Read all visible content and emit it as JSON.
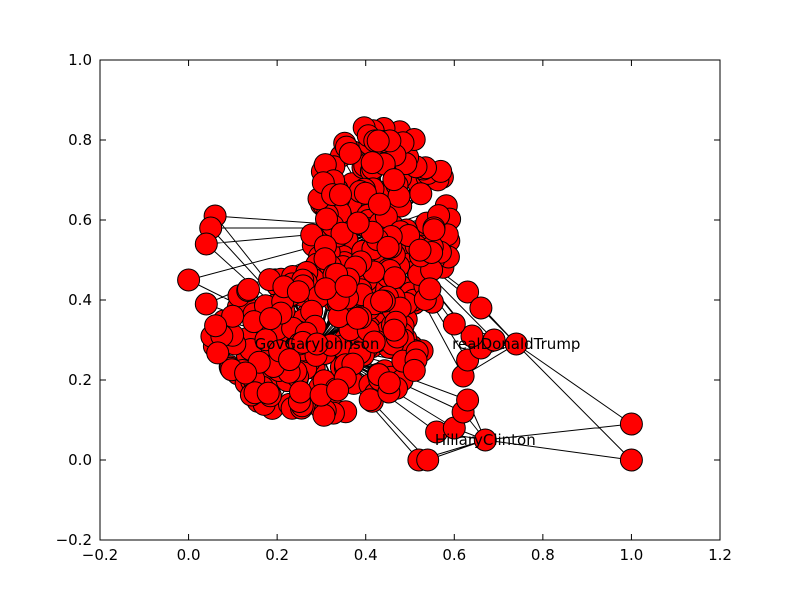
{
  "chart_data": {
    "type": "scatter",
    "title": "",
    "xlabel": "",
    "ylabel": "",
    "xlim": [
      -0.2,
      1.2
    ],
    "ylim": [
      -0.2,
      1.0
    ],
    "x_ticks": [
      -0.2,
      0.0,
      0.2,
      0.4,
      0.6,
      0.8,
      1.0,
      1.2
    ],
    "x_tick_labels": [
      "−0.2",
      "0.0",
      "0.2",
      "0.4",
      "0.6",
      "0.8",
      "1.0",
      "1.2"
    ],
    "y_ticks": [
      -0.2,
      0.0,
      0.2,
      0.4,
      0.6,
      0.8,
      1.0
    ],
    "y_tick_labels": [
      "−0.2",
      "0.0",
      "0.2",
      "0.4",
      "0.6",
      "0.8",
      "1.0"
    ],
    "grid": false,
    "node_color": "#ff0000",
    "edge_color": "#000000",
    "labeled_nodes": [
      {
        "name": "GovGaryJohnson",
        "x": 0.29,
        "y": 0.29
      },
      {
        "name": "realDonaldTrump",
        "x": 0.74,
        "y": 0.29
      },
      {
        "name": "HillaryClinton",
        "x": 0.67,
        "y": 0.05
      }
    ],
    "isolated_points": [
      {
        "x": 1.0,
        "y": 0.09
      },
      {
        "x": 1.0,
        "y": 0.0
      }
    ],
    "clusters": [
      {
        "center_x": 0.44,
        "center_y": 0.58,
        "radius_x": 0.17,
        "radius_y": 0.26
      },
      {
        "center_x": 0.29,
        "center_y": 0.29,
        "radius_x": 0.24,
        "radius_y": 0.18
      }
    ]
  }
}
